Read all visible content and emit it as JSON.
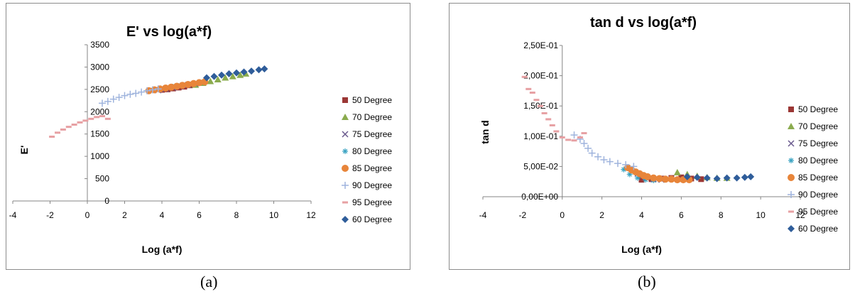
{
  "captions": {
    "a": "(a)",
    "b": "(b)"
  },
  "chart_data": [
    {
      "type": "scatter",
      "title": "E' vs log(a*f)",
      "xlabel": "Log (a*f)",
      "ylabel": "E'",
      "xlim": [
        -4,
        12
      ],
      "ylim": [
        0,
        3500
      ],
      "x_ticks": [
        "-4",
        "-2",
        "0",
        "2",
        "4",
        "6",
        "8",
        "10",
        "12"
      ],
      "y_ticks": [
        "0",
        "500",
        "1000",
        "1500",
        "2000",
        "2500",
        "3000",
        "3500"
      ],
      "legend_position": "right",
      "series": [
        {
          "name": "50 Degree",
          "color": "#9b3735",
          "marker": "square",
          "points": [
            [
              4.0,
              2490
            ],
            [
              4.3,
              2500
            ],
            [
              4.6,
              2520
            ],
            [
              4.9,
              2540
            ],
            [
              5.2,
              2560
            ],
            [
              5.5,
              2590
            ],
            [
              5.8,
              2620
            ],
            [
              6.1,
              2650
            ]
          ]
        },
        {
          "name": "70 Degree",
          "color": "#8aab4e",
          "marker": "triangle",
          "points": [
            [
              5.8,
              2600
            ],
            [
              6.2,
              2640
            ],
            [
              6.6,
              2680
            ],
            [
              7.0,
              2720
            ],
            [
              7.4,
              2760
            ],
            [
              7.8,
              2790
            ],
            [
              8.2,
              2820
            ],
            [
              8.5,
              2850
            ]
          ]
        },
        {
          "name": "75 Degree",
          "color": "#6a5a8e",
          "marker": "x",
          "points": [
            [
              3.8,
              2480
            ],
            [
              4.2,
              2510
            ],
            [
              4.6,
              2540
            ],
            [
              5.0,
              2570
            ],
            [
              5.4,
              2600
            ],
            [
              5.8,
              2630
            ]
          ]
        },
        {
          "name": "80 Degree",
          "color": "#3aa3c2",
          "marker": "asterisk",
          "points": [
            [
              3.4,
              2470
            ],
            [
              3.8,
              2500
            ],
            [
              4.2,
              2530
            ],
            [
              4.6,
              2560
            ],
            [
              5.0,
              2590
            ]
          ]
        },
        {
          "name": "85 Degree",
          "color": "#e8853a",
          "marker": "circle",
          "points": [
            [
              3.3,
              2470
            ],
            [
              3.6,
              2490
            ],
            [
              3.9,
              2510
            ],
            [
              4.2,
              2530
            ],
            [
              4.5,
              2550
            ],
            [
              4.8,
              2570
            ],
            [
              5.1,
              2590
            ],
            [
              5.4,
              2610
            ],
            [
              5.7,
              2630
            ],
            [
              6.0,
              2650
            ],
            [
              6.3,
              2670
            ]
          ]
        },
        {
          "name": "90 Degree",
          "color": "#9fb4dd",
          "marker": "plus",
          "points": [
            [
              0.8,
              2190
            ],
            [
              1.1,
              2230
            ],
            [
              1.4,
              2280
            ],
            [
              1.7,
              2320
            ],
            [
              2.0,
              2360
            ],
            [
              2.3,
              2390
            ],
            [
              2.6,
              2410
            ],
            [
              2.9,
              2440
            ],
            [
              3.2,
              2470
            ],
            [
              3.5,
              2490
            ],
            [
              3.8,
              2510
            ]
          ]
        },
        {
          "name": "95 Degree",
          "color": "#e7a0a3",
          "marker": "dash",
          "points": [
            [
              -1.9,
              1440
            ],
            [
              -1.6,
              1530
            ],
            [
              -1.3,
              1600
            ],
            [
              -1.0,
              1660
            ],
            [
              -0.7,
              1710
            ],
            [
              -0.4,
              1760
            ],
            [
              -0.1,
              1800
            ],
            [
              0.2,
              1840
            ],
            [
              0.5,
              1880
            ],
            [
              0.8,
              1900
            ],
            [
              1.1,
              1840
            ]
          ]
        },
        {
          "name": "60 Degree",
          "color": "#2f5d9a",
          "marker": "diamond",
          "points": [
            [
              6.4,
              2760
            ],
            [
              6.8,
              2790
            ],
            [
              7.2,
              2820
            ],
            [
              7.6,
              2850
            ],
            [
              8.0,
              2870
            ],
            [
              8.4,
              2890
            ],
            [
              8.8,
              2910
            ],
            [
              9.2,
              2940
            ],
            [
              9.5,
              2960
            ]
          ]
        }
      ]
    },
    {
      "type": "scatter",
      "title": "tan d vs log(a*f)",
      "xlabel": "Log (a*f)",
      "ylabel": "tan d",
      "xlim": [
        -4,
        12
      ],
      "ylim": [
        0,
        0.25
      ],
      "x_ticks": [
        "-4",
        "-2",
        "0",
        "2",
        "4",
        "6",
        "8",
        "10",
        "12"
      ],
      "y_ticks": [
        "0,00E+00",
        "5,00E-02",
        "1,00E-01",
        "1,50E-01",
        "2,00E-01",
        "2,50E-01"
      ],
      "legend_position": "right",
      "series": [
        {
          "name": "50 Degree",
          "color": "#9b3735",
          "marker": "square",
          "points": [
            [
              4.0,
              0.028
            ],
            [
              4.5,
              0.029
            ],
            [
              5.0,
              0.03
            ],
            [
              5.5,
              0.031
            ],
            [
              6.0,
              0.032
            ],
            [
              6.5,
              0.03
            ],
            [
              7.0,
              0.029
            ]
          ]
        },
        {
          "name": "70 Degree",
          "color": "#8aab4e",
          "marker": "triangle",
          "points": [
            [
              5.8,
              0.04
            ],
            [
              6.3,
              0.037
            ],
            [
              6.8,
              0.034
            ],
            [
              7.3,
              0.032
            ],
            [
              7.8,
              0.031
            ],
            [
              8.3,
              0.031
            ]
          ]
        },
        {
          "name": "75 Degree",
          "color": "#6a5a8e",
          "marker": "x",
          "points": [
            [
              3.8,
              0.038
            ],
            [
              4.2,
              0.032
            ],
            [
              4.6,
              0.029
            ],
            [
              5.0,
              0.028
            ]
          ]
        },
        {
          "name": "80 Degree",
          "color": "#3aa3c2",
          "marker": "asterisk",
          "points": [
            [
              3.1,
              0.045
            ],
            [
              3.4,
              0.037
            ],
            [
              3.8,
              0.031
            ],
            [
              4.2,
              0.028
            ],
            [
              4.6,
              0.027
            ]
          ]
        },
        {
          "name": "85 Degree",
          "color": "#e8853a",
          "marker": "circle",
          "points": [
            [
              3.3,
              0.048
            ],
            [
              3.5,
              0.044
            ],
            [
              3.7,
              0.041
            ],
            [
              3.9,
              0.038
            ],
            [
              4.1,
              0.035
            ],
            [
              4.3,
              0.033
            ],
            [
              4.6,
              0.031
            ],
            [
              4.9,
              0.03
            ],
            [
              5.2,
              0.029
            ],
            [
              5.5,
              0.029
            ],
            [
              5.8,
              0.028
            ],
            [
              6.1,
              0.028
            ],
            [
              6.4,
              0.028
            ]
          ]
        },
        {
          "name": "90 Degree",
          "color": "#9fb4dd",
          "marker": "plus",
          "points": [
            [
              0.6,
              0.102
            ],
            [
              0.9,
              0.095
            ],
            [
              1.1,
              0.088
            ],
            [
              1.3,
              0.08
            ],
            [
              1.5,
              0.072
            ],
            [
              1.8,
              0.066
            ],
            [
              2.1,
              0.061
            ],
            [
              2.4,
              0.058
            ],
            [
              2.8,
              0.055
            ],
            [
              3.2,
              0.053
            ],
            [
              3.6,
              0.05
            ]
          ]
        },
        {
          "name": "95 Degree",
          "color": "#e7a0a3",
          "marker": "dash",
          "points": [
            [
              -1.9,
              0.198
            ],
            [
              -1.7,
              0.178
            ],
            [
              -1.5,
              0.172
            ],
            [
              -1.3,
              0.16
            ],
            [
              -1.1,
              0.15
            ],
            [
              -0.9,
              0.138
            ],
            [
              -0.7,
              0.128
            ],
            [
              -0.5,
              0.118
            ],
            [
              -0.3,
              0.108
            ],
            [
              0.0,
              0.098
            ],
            [
              0.3,
              0.094
            ],
            [
              0.6,
              0.093
            ],
            [
              0.9,
              0.098
            ],
            [
              1.1,
              0.105
            ]
          ]
        },
        {
          "name": "60 Degree",
          "color": "#2f5d9a",
          "marker": "diamond",
          "points": [
            [
              6.3,
              0.033
            ],
            [
              6.8,
              0.032
            ],
            [
              7.3,
              0.031
            ],
            [
              7.8,
              0.03
            ],
            [
              8.3,
              0.031
            ],
            [
              8.8,
              0.031
            ],
            [
              9.2,
              0.032
            ],
            [
              9.5,
              0.033
            ]
          ]
        }
      ]
    }
  ]
}
